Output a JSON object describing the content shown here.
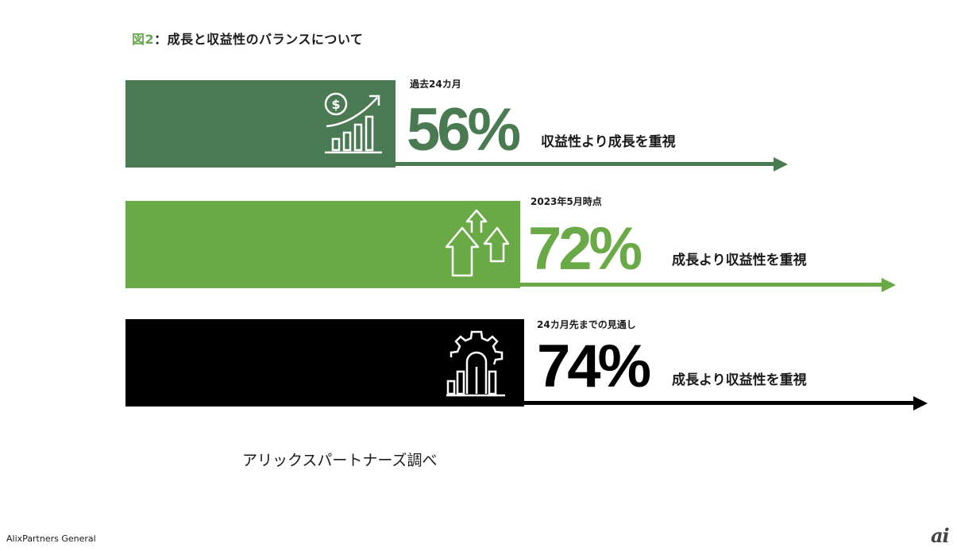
{
  "title": {
    "figure_label": "図2",
    "text": "：成長と収益性のバランスについて"
  },
  "rows": [
    {
      "period": "過去24カ月",
      "percent": "56%",
      "description": "収益性より成長を重視",
      "icon": "dollar-growth-chart-icon",
      "color": "#4a7a52"
    },
    {
      "period": "2023年5月時点",
      "percent": "72%",
      "description": "成長より収益性を重視",
      "icon": "upward-arrows-icon",
      "color": "#6aaa46"
    },
    {
      "period": "24カ月先までの見通し",
      "percent": "74%",
      "description": "成長より収益性を重視",
      "icon": "gear-bar-chart-icon",
      "color": "#000000"
    }
  ],
  "source": "アリックスパートナーズ調べ",
  "footer": "AlixPartners General",
  "logo": "ai"
}
